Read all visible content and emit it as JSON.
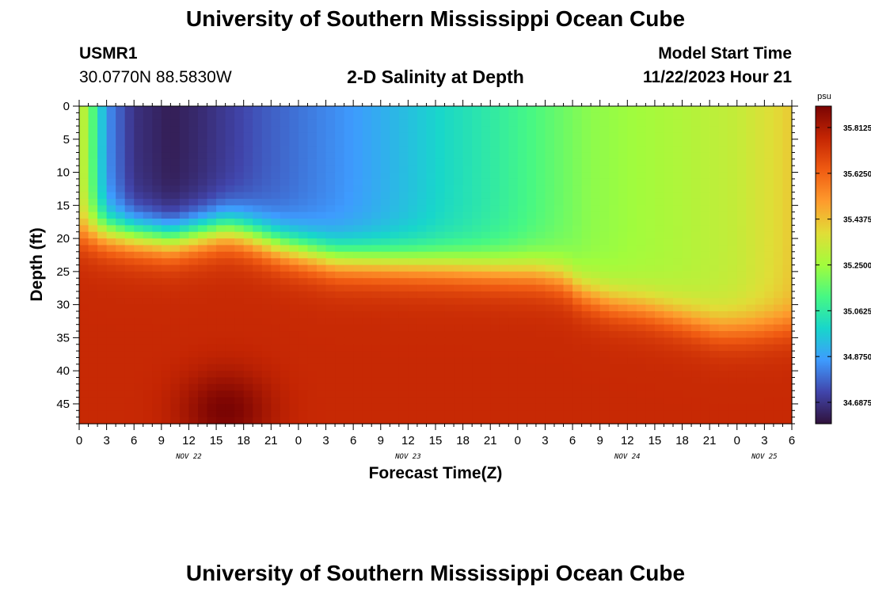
{
  "header": {
    "title": "University of Southern Mississippi Ocean Cube",
    "footer_title": "University of Southern Mississippi Ocean Cube",
    "station_id": "USMR1",
    "station_coords": "30.0770N  88.5830W",
    "subtitle": "2-D Salinity at Depth",
    "start_label": "Model Start Time",
    "start_value": "11/22/2023 Hour 21"
  },
  "chart_data": {
    "type": "heatmap",
    "title": "2-D Salinity at Depth",
    "xlabel": "Forecast Time(Z)",
    "ylabel": "Depth (ft)",
    "xlim": [
      0,
      78
    ],
    "ylim": [
      0,
      48
    ],
    "x_tick_labels": [
      "0",
      "3",
      "6",
      "9",
      "12",
      "15",
      "18",
      "21",
      "0",
      "3",
      "6",
      "9",
      "12",
      "15",
      "18",
      "21",
      "0",
      "3",
      "6",
      "9",
      "12",
      "15",
      "18",
      "21",
      "0",
      "3",
      "6"
    ],
    "y_ticks": [
      0,
      5,
      10,
      15,
      20,
      25,
      30,
      35,
      40,
      45
    ],
    "date_labels": [
      {
        "label": "NOV 22",
        "hour": 12
      },
      {
        "label": "NOV 23",
        "hour": 36
      },
      {
        "label": "NOV 24",
        "hour": 60
      },
      {
        "label": "NOV 25",
        "hour": 75
      }
    ],
    "colorbar": {
      "unit": "psu",
      "min": 34.6,
      "max": 35.9,
      "ticks": [
        "35.8125",
        "35.6250",
        "35.4375",
        "35.2500",
        "35.0625",
        "34.8750",
        "34.6875"
      ]
    },
    "colormap": [
      "#30123b",
      "#4145ab",
      "#3e9bfe",
      "#18d6cb",
      "#46f884",
      "#a2fc3c",
      "#e1dd37",
      "#fe9b2d",
      "#f05b12",
      "#c42503",
      "#7a0403"
    ],
    "field_model": {
      "surface_salinity_by_hour": [
        [
          0,
          35.36
        ],
        [
          1,
          35.22
        ],
        [
          2,
          35.05
        ],
        [
          3,
          34.85
        ],
        [
          6,
          34.68
        ],
        [
          10,
          34.63
        ],
        [
          13,
          34.66
        ],
        [
          20,
          34.76
        ],
        [
          30,
          34.86
        ],
        [
          36,
          34.94
        ],
        [
          40,
          35.0
        ],
        [
          45,
          35.06
        ],
        [
          48,
          35.1
        ],
        [
          56,
          35.22
        ],
        [
          66,
          35.28
        ],
        [
          72,
          35.32
        ],
        [
          76,
          35.38
        ],
        [
          78,
          35.42
        ]
      ],
      "halocline_depth_ft_by_hour": [
        [
          0,
          19
        ],
        [
          3,
          19
        ],
        [
          10,
          20
        ],
        [
          14,
          19
        ],
        [
          16,
          18.5
        ],
        [
          18,
          19
        ],
        [
          22,
          21
        ],
        [
          28,
          23
        ],
        [
          40,
          24
        ],
        [
          50,
          25
        ],
        [
          53,
          26
        ],
        [
          55,
          28
        ],
        [
          58,
          29.5
        ],
        [
          62,
          30.5
        ],
        [
          66,
          32
        ],
        [
          70,
          33.5
        ],
        [
          74,
          33.5
        ],
        [
          78,
          33
        ]
      ],
      "bottom_salinity": 35.76,
      "hot_spots": [
        {
          "hour": 16,
          "depth_ft": 46,
          "salinity": 35.9
        },
        {
          "hour": 66,
          "depth_ft": 44,
          "salinity": 35.76
        }
      ]
    }
  }
}
